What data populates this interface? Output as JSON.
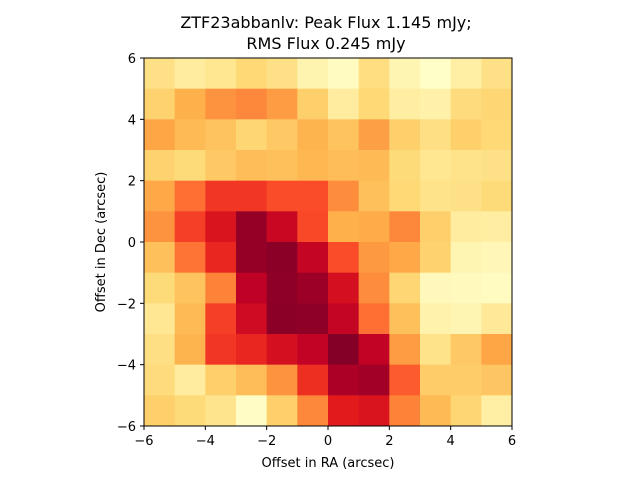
{
  "chart_data": {
    "type": "heatmap",
    "title_lines": [
      "ZTF23abbanlv: Peak Flux 1.145 mJy;",
      "RMS Flux 0.245 mJy"
    ],
    "xlabel": "Offset in RA (arcsec)",
    "ylabel": "Offset in Dec (arcsec)",
    "xlim": [
      -6,
      6
    ],
    "ylim": [
      -6,
      6
    ],
    "xticks": [
      -6,
      -4,
      -2,
      0,
      2,
      4,
      6
    ],
    "yticks": [
      -6,
      -4,
      -2,
      0,
      2,
      4,
      6
    ],
    "xtick_labels": [
      "−6",
      "−4",
      "−2",
      "0",
      "2",
      "4",
      "6"
    ],
    "ytick_labels": [
      "−6",
      "−4",
      "−2",
      "0",
      "2",
      "4",
      "6"
    ],
    "colormap": "YlOrRd",
    "colormap_stops": [
      "#ffffcc",
      "#ffeda0",
      "#fed976",
      "#feb24c",
      "#fd8d3c",
      "#fc4e2a",
      "#e31a1c",
      "#bd0026",
      "#800026"
    ],
    "grid": false,
    "pixel_size_arcsec": 1,
    "rows_top_to_bottom": [
      [
        0.2,
        0.13,
        0.17,
        0.25,
        0.2,
        0.08,
        0.03,
        0.22,
        0.07,
        0.01,
        0.11,
        0.2
      ],
      [
        0.27,
        0.38,
        0.48,
        0.51,
        0.45,
        0.28,
        0.13,
        0.25,
        0.12,
        0.1,
        0.23,
        0.26
      ],
      [
        0.42,
        0.35,
        0.32,
        0.26,
        0.3,
        0.37,
        0.32,
        0.44,
        0.28,
        0.21,
        0.28,
        0.25
      ],
      [
        0.27,
        0.24,
        0.3,
        0.34,
        0.33,
        0.36,
        0.34,
        0.35,
        0.24,
        0.17,
        0.19,
        0.2
      ],
      [
        0.41,
        0.56,
        0.68,
        0.68,
        0.63,
        0.63,
        0.5,
        0.33,
        0.25,
        0.19,
        0.2,
        0.24
      ],
      [
        0.48,
        0.66,
        0.78,
        0.96,
        0.84,
        0.64,
        0.38,
        0.4,
        0.51,
        0.28,
        0.13,
        0.12
      ],
      [
        0.33,
        0.55,
        0.72,
        0.96,
        0.98,
        0.85,
        0.63,
        0.46,
        0.41,
        0.27,
        0.07,
        0.06
      ],
      [
        0.24,
        0.32,
        0.52,
        0.87,
        0.97,
        0.94,
        0.8,
        0.5,
        0.26,
        0.05,
        0.04,
        0.03
      ],
      [
        0.16,
        0.35,
        0.66,
        0.82,
        0.98,
        0.97,
        0.85,
        0.56,
        0.33,
        0.09,
        0.07,
        0.15
      ],
      [
        0.21,
        0.37,
        0.68,
        0.72,
        0.8,
        0.86,
        0.99,
        0.86,
        0.45,
        0.19,
        0.3,
        0.42
      ],
      [
        0.23,
        0.13,
        0.28,
        0.34,
        0.48,
        0.7,
        0.91,
        0.93,
        0.6,
        0.29,
        0.29,
        0.31
      ],
      [
        0.28,
        0.24,
        0.18,
        0.02,
        0.28,
        0.51,
        0.75,
        0.78,
        0.52,
        0.35,
        0.26,
        0.11
      ]
    ]
  }
}
